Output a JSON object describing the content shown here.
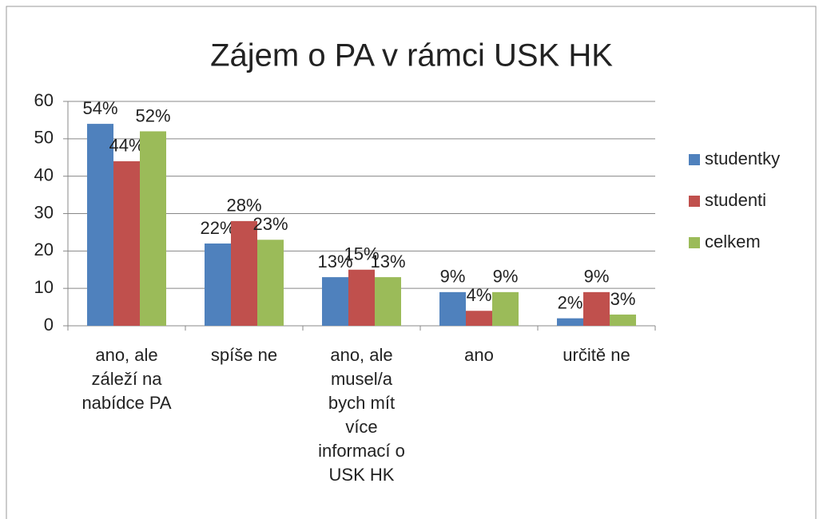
{
  "chart_data": {
    "type": "bar",
    "title": "Zájem o PA v rámci USK HK",
    "categories": [
      "ano, ale záleží na nabídce PA",
      "spíše ne",
      "ano, ale musel/a bych mít více informací o USK HK",
      "ano",
      "určitě ne"
    ],
    "series": [
      {
        "name": "studentky",
        "color": "#4f81bd",
        "values": [
          54,
          22,
          13,
          9,
          2
        ],
        "value_labels": [
          "54%",
          "22%",
          "13%",
          "9%",
          "2%"
        ]
      },
      {
        "name": "studenti",
        "color": "#c0504d",
        "values": [
          44,
          28,
          15,
          4,
          9
        ],
        "value_labels": [
          "44%",
          "28%",
          "15%",
          "4%",
          "9%"
        ]
      },
      {
        "name": "celkem",
        "color": "#9bbb59",
        "values": [
          52,
          23,
          13,
          9,
          3
        ],
        "value_labels": [
          "52%",
          "23%",
          "13%",
          "9%",
          "3%"
        ]
      }
    ],
    "ylim": [
      0,
      60
    ],
    "yticks": [
      0,
      10,
      20,
      30,
      40,
      50,
      60
    ],
    "grid": true,
    "legend": "right"
  }
}
